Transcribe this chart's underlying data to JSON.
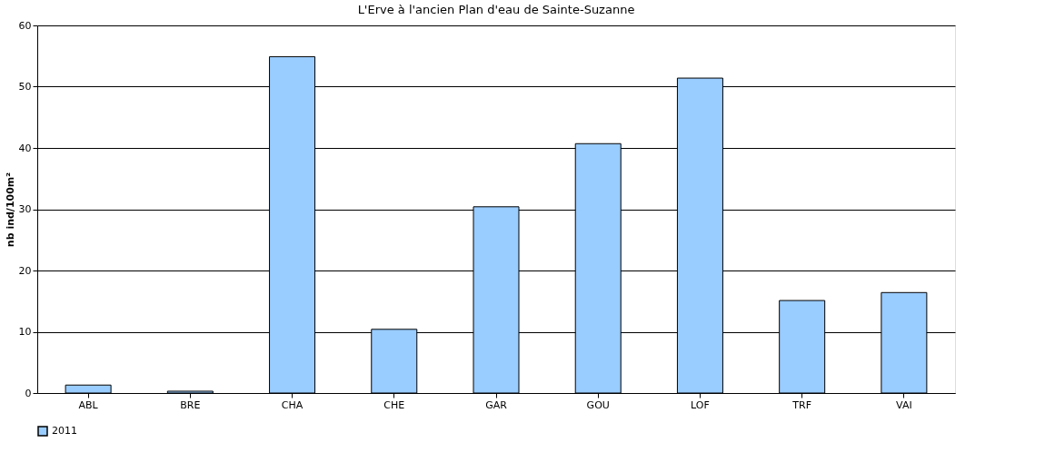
{
  "chart_data": {
    "type": "bar",
    "title": "L'Erve à l'ancien Plan d'eau de Sainte-Suzanne",
    "ylabel": "nb ind/100m²",
    "categories": [
      "ABL",
      "BRE",
      "CHA",
      "CHE",
      "GAR",
      "GOU",
      "LOF",
      "TRF",
      "VAI"
    ],
    "series": [
      {
        "name": "2011",
        "color": "#99ccff",
        "values": [
          1.3,
          0.3,
          54.9,
          10.4,
          30.4,
          40.7,
          51.4,
          15.1,
          16.4
        ]
      }
    ],
    "ylim": [
      0,
      60
    ],
    "yticks": [
      0,
      10,
      20,
      30,
      40,
      50,
      60
    ],
    "grid": "y",
    "legend": "bottom"
  }
}
